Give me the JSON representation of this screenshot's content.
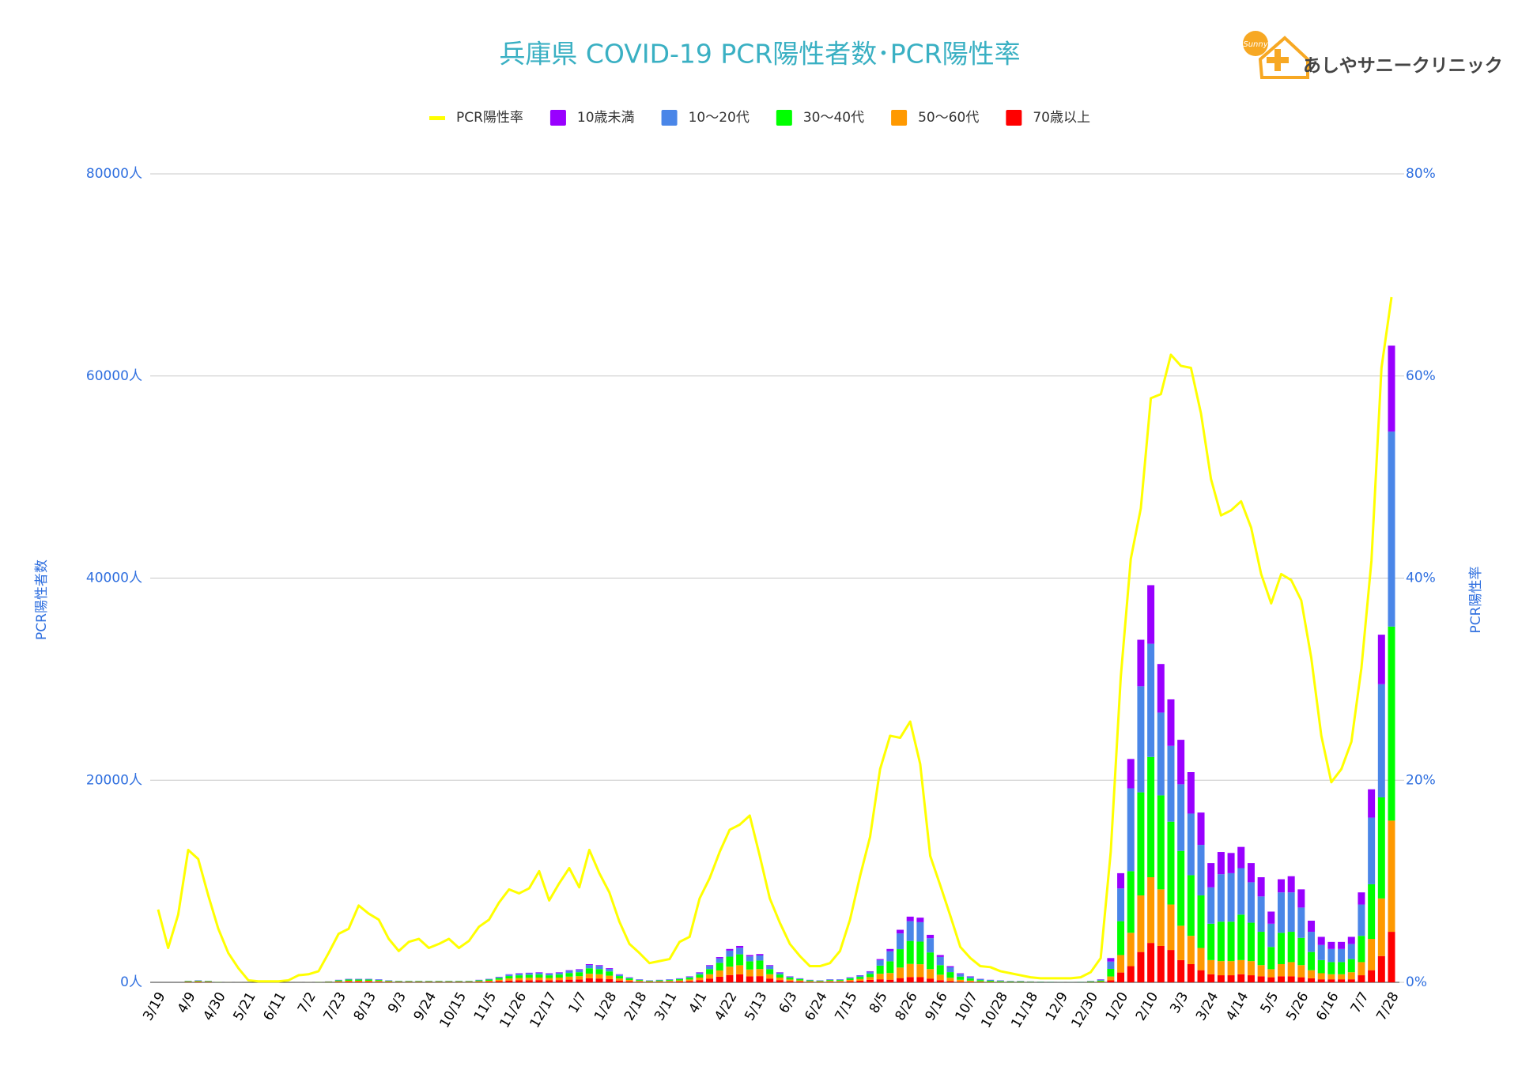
{
  "chart_data": {
    "type": "bar",
    "stacked": true,
    "title": "兵庫県  COVID-19 PCR陽性者数･PCR陽性率",
    "logo": {
      "text": "あしやサニークリニック",
      "icon_text": "Sunny"
    },
    "ylabel": "PCR陽性者数",
    "y2label": "PCR陽性率",
    "ylim": [
      0,
      80000
    ],
    "yticks": [
      {
        "value": 0,
        "label": "0人"
      },
      {
        "value": 20000,
        "label": "20000人"
      },
      {
        "value": 40000,
        "label": "40000人"
      },
      {
        "value": 60000,
        "label": "60000人"
      },
      {
        "value": 80000,
        "label": "80000人"
      }
    ],
    "y2lim": [
      0,
      80
    ],
    "y2ticks": [
      {
        "value": 0,
        "label": "0%"
      },
      {
        "value": 20,
        "label": "20%"
      },
      {
        "value": 40,
        "label": "40%"
      },
      {
        "value": 60,
        "label": "60%"
      },
      {
        "value": 80,
        "label": "80%"
      }
    ],
    "grid": true,
    "legend": "top",
    "categories": [
      "3/19",
      null,
      null,
      "4/9",
      null,
      null,
      "4/30",
      null,
      null,
      "5/21",
      null,
      null,
      "6/11",
      null,
      null,
      "7/2",
      null,
      null,
      "7/23",
      null,
      null,
      "8/13",
      null,
      null,
      "9/3",
      null,
      null,
      "9/24",
      null,
      null,
      "10/15",
      null,
      null,
      "11/5",
      null,
      null,
      "11/26",
      null,
      null,
      "12/17",
      null,
      null,
      "1/7",
      null,
      null,
      "1/28",
      null,
      null,
      "2/18",
      null,
      null,
      "3/11",
      null,
      null,
      "4/1",
      null,
      null,
      "4/22",
      null,
      null,
      "5/13",
      null,
      null,
      "6/3",
      null,
      null,
      "6/24",
      null,
      null,
      "7/15",
      null,
      null,
      "8/5",
      null,
      null,
      "8/26",
      null,
      null,
      "9/16",
      null,
      null,
      "10/7",
      null,
      null,
      "10/28",
      null,
      null,
      "11/18",
      null,
      null,
      "12/9",
      null,
      null,
      "12/30",
      null,
      null,
      "1/20",
      null,
      null,
      "2/10",
      null,
      null,
      "3/3",
      null,
      null,
      "3/24",
      null,
      null,
      "4/14",
      null,
      null,
      "5/5",
      null,
      null,
      "5/26",
      null,
      null,
      "6/16",
      null,
      null,
      "7/7",
      null,
      null,
      "7/28"
    ],
    "series": [
      {
        "name": "PCR陽性率",
        "type": "line",
        "axis": "y2",
        "color": "#ffff00",
        "values": [
          7.2,
          3.4,
          6.7,
          13.1,
          12.2,
          8.6,
          5.3,
          2.9,
          1.4,
          0.2,
          0.1,
          0.1,
          0.1,
          0.2,
          0.7,
          0.8,
          1.1,
          2.9,
          4.8,
          5.3,
          7.6,
          6.8,
          6.2,
          4.3,
          3.1,
          4.0,
          4.3,
          3.4,
          3.8,
          4.3,
          3.4,
          4.1,
          5.5,
          6.2,
          7.9,
          9.2,
          8.8,
          9.3,
          11.0,
          8.1,
          9.8,
          11.3,
          9.4,
          13.1,
          10.8,
          8.9,
          6.0,
          3.8,
          2.9,
          1.9,
          2.1,
          2.3,
          4.0,
          4.5,
          8.3,
          10.3,
          12.9,
          15.1,
          15.6,
          16.5,
          12.5,
          8.3,
          5.9,
          3.8,
          2.6,
          1.6,
          1.6,
          1.9,
          3.1,
          6.2,
          10.5,
          14.4,
          21.1,
          24.4,
          24.2,
          25.8,
          21.6,
          12.5,
          9.6,
          6.6,
          3.5,
          2.4,
          1.6,
          1.5,
          1.1,
          0.9,
          0.7,
          0.5,
          0.4,
          0.4,
          0.4,
          0.4,
          0.5,
          1.0,
          2.4,
          12.9,
          30.2,
          41.9,
          46.9,
          57.8,
          58.2,
          62.1,
          61.0,
          60.8,
          56.3,
          49.8,
          46.2,
          46.7,
          47.6,
          45.0,
          40.4,
          37.5,
          40.4,
          39.8,
          37.8,
          32.1,
          24.4,
          19.8,
          21.1,
          23.8,
          31.1,
          41.7,
          60.8,
          67.8
        ]
      },
      {
        "name": "10歳未満",
        "type": "bar",
        "color": "#9900ff",
        "values": [
          0,
          0,
          0,
          5,
          10,
          5,
          2,
          1,
          0,
          0,
          0,
          0,
          0,
          0,
          0,
          1,
          2,
          5,
          10,
          15,
          15,
          15,
          15,
          10,
          5,
          5,
          5,
          5,
          5,
          5,
          5,
          5,
          10,
          15,
          25,
          35,
          45,
          45,
          50,
          45,
          50,
          60,
          65,
          85,
          85,
          70,
          35,
          25,
          15,
          10,
          10,
          15,
          20,
          30,
          50,
          85,
          125,
          165,
          180,
          135,
          140,
          85,
          50,
          30,
          20,
          10,
          10,
          15,
          15,
          25,
          35,
          55,
          100,
          230,
          360,
          455,
          450,
          330,
          190,
          110,
          65,
          40,
          25,
          15,
          15,
          10,
          10,
          5,
          5,
          5,
          5,
          5,
          5,
          10,
          40,
          350,
          1510,
          2900,
          4600,
          5800,
          4800,
          4600,
          4400,
          4100,
          3200,
          2400,
          2200,
          2000,
          2100,
          1900,
          1900,
          1200,
          1300,
          1600,
          1800,
          1100,
          800,
          700,
          700,
          700,
          1200,
          2800,
          4900,
          8500
        ]
      },
      {
        "name": "10〜20代",
        "type": "bar",
        "color": "#4a86e8",
        "values": [
          0,
          0,
          0,
          30,
          40,
          30,
          8,
          3,
          2,
          1,
          0,
          0,
          0,
          1,
          2,
          4,
          8,
          20,
          50,
          65,
          65,
          65,
          60,
          40,
          30,
          30,
          30,
          30,
          30,
          30,
          30,
          30,
          50,
          65,
          100,
          145,
          160,
          170,
          180,
          160,
          180,
          215,
          235,
          325,
          305,
          250,
          145,
          90,
          60,
          40,
          50,
          60,
          70,
          110,
          180,
          305,
          450,
          595,
          650,
          485,
          505,
          305,
          180,
          110,
          70,
          50,
          40,
          60,
          60,
          90,
          125,
          200,
          550,
          990,
          1560,
          1950,
          1920,
          1410,
          810,
          480,
          270,
          180,
          105,
          75,
          60,
          45,
          45,
          30,
          25,
          20,
          15,
          15,
          20,
          45,
          90,
          720,
          3240,
          8200,
          10500,
          11200,
          8200,
          7500,
          6600,
          6100,
          5000,
          3600,
          4700,
          4800,
          4600,
          4000,
          3500,
          2300,
          4000,
          3900,
          3000,
          2000,
          1500,
          1300,
          1300,
          1500,
          3100,
          6600,
          11200,
          19300
        ]
      },
      {
        "name": "30〜40代",
        "type": "bar",
        "color": "#00ff00",
        "values": [
          0,
          0,
          0,
          45,
          60,
          45,
          15,
          6,
          3,
          2,
          0,
          0,
          0,
          2,
          3,
          6,
          15,
          30,
          80,
          110,
          110,
          110,
          90,
          60,
          45,
          45,
          45,
          45,
          45,
          45,
          45,
          45,
          80,
          110,
          165,
          240,
          270,
          285,
          300,
          270,
          300,
          360,
          390,
          540,
          510,
          420,
          240,
          150,
          90,
          60,
          80,
          90,
          120,
          180,
          300,
          510,
          750,
          990,
          1080,
          810,
          840,
          510,
          300,
          180,
          120,
          80,
          60,
          90,
          90,
          150,
          210,
          330,
          800,
          1160,
          1820,
          2275,
          2240,
          1645,
          945,
          560,
          315,
          210,
          120,
          90,
          70,
          55,
          55,
          35,
          30,
          20,
          15,
          15,
          20,
          55,
          95,
          750,
          3350,
          6100,
          10200,
          11900,
          9300,
          8200,
          7400,
          6000,
          5200,
          3600,
          3900,
          3900,
          4500,
          3800,
          3300,
          2200,
          3100,
          3000,
          2700,
          1800,
          1300,
          1200,
          1200,
          1300,
          2600,
          5400,
          10000,
          19200
        ]
      },
      {
        "name": "50〜60代",
        "type": "bar",
        "color": "#ff9900",
        "values": [
          0,
          0,
          0,
          40,
          50,
          40,
          15,
          5,
          3,
          1,
          0,
          0,
          0,
          1,
          3,
          5,
          15,
          25,
          60,
          90,
          90,
          90,
          75,
          50,
          40,
          40,
          40,
          40,
          40,
          40,
          40,
          40,
          60,
          90,
          140,
          200,
          225,
          240,
          250,
          225,
          250,
          300,
          325,
          450,
          425,
          350,
          200,
          125,
          75,
          50,
          60,
          75,
          100,
          150,
          250,
          425,
          625,
          825,
          900,
          675,
          700,
          425,
          250,
          150,
          100,
          60,
          50,
          75,
          75,
          125,
          175,
          275,
          550,
          660,
          1040,
          1300,
          1280,
          940,
          540,
          320,
          180,
          120,
          70,
          50,
          40,
          30,
          30,
          20,
          15,
          10,
          10,
          10,
          10,
          30,
          50,
          380,
          1730,
          3300,
          5600,
          6500,
          5600,
          4500,
          3400,
          2800,
          2200,
          1400,
          1400,
          1400,
          1400,
          1400,
          1100,
          800,
          1200,
          1400,
          1200,
          800,
          600,
          500,
          500,
          700,
          1300,
          3100,
          5700,
          11000
        ]
      },
      {
        "name": "70歳以上",
        "type": "bar",
        "color": "#ff0000",
        "values": [
          0,
          0,
          0,
          30,
          40,
          30,
          10,
          5,
          2,
          1,
          0,
          0,
          0,
          1,
          2,
          4,
          10,
          20,
          50,
          70,
          70,
          70,
          60,
          40,
          30,
          30,
          30,
          30,
          30,
          30,
          30,
          30,
          50,
          70,
          120,
          180,
          200,
          210,
          220,
          200,
          220,
          265,
          285,
          400,
          375,
          310,
          180,
          110,
          60,
          40,
          50,
          60,
          90,
          130,
          220,
          375,
          550,
          725,
          790,
          595,
          615,
          375,
          220,
          130,
          90,
          50,
          40,
          60,
          60,
          110,
          155,
          240,
          300,
          260,
          420,
          520,
          510,
          375,
          215,
          130,
          70,
          50,
          30,
          20,
          15,
          10,
          10,
          10,
          5,
          5,
          5,
          5,
          5,
          10,
          25,
          200,
          970,
          1600,
          3000,
          3900,
          3600,
          3200,
          2200,
          1800,
          1200,
          800,
          700,
          700,
          800,
          700,
          600,
          500,
          600,
          600,
          500,
          400,
          300,
          300,
          300,
          300,
          700,
          1200,
          2600,
          5000
        ]
      }
    ]
  }
}
